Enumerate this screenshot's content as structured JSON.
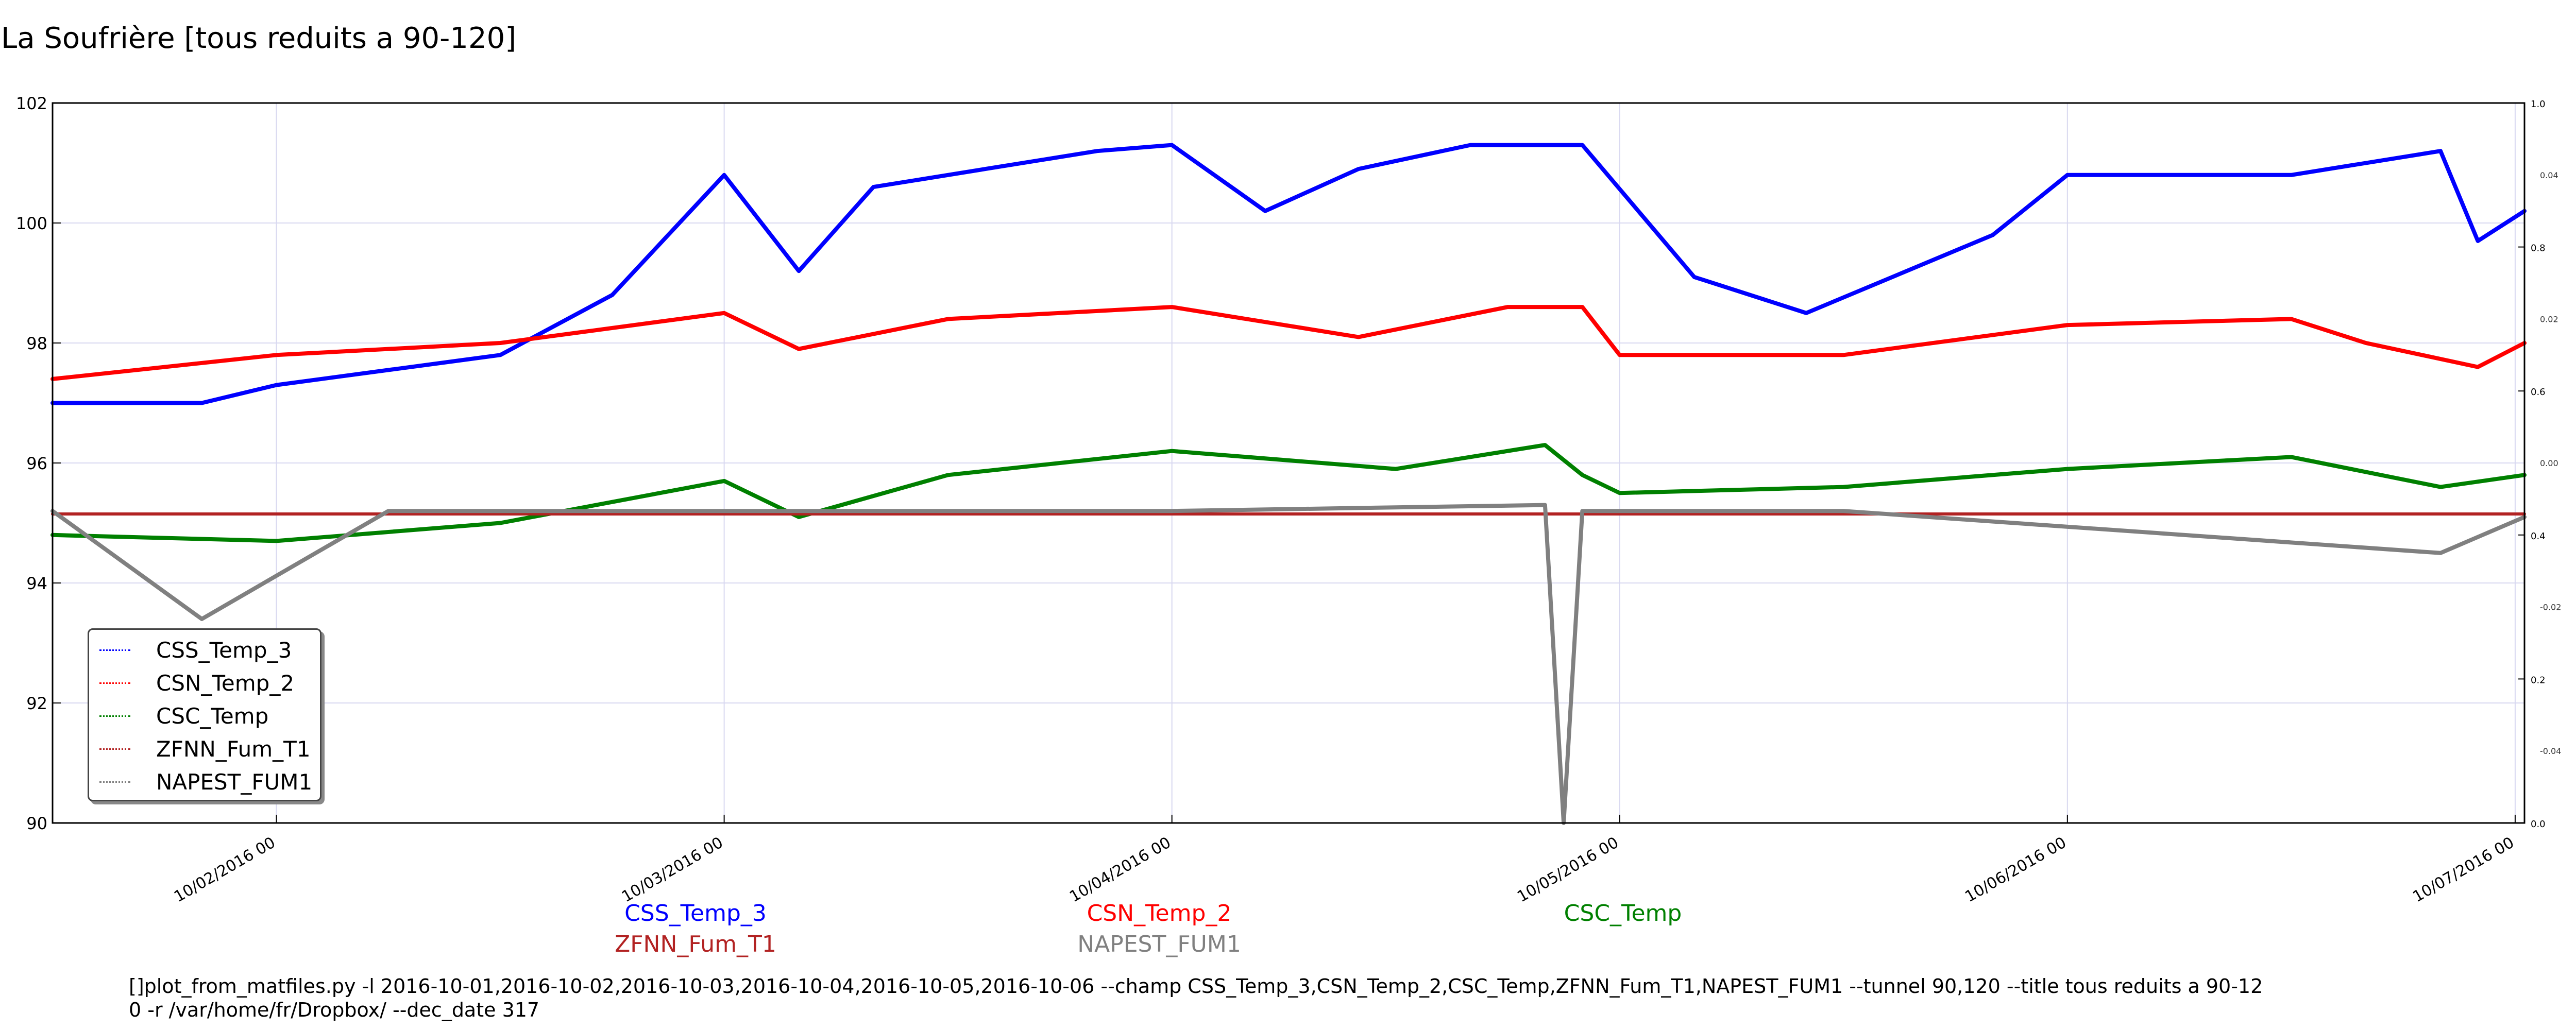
{
  "title": "La Soufrière [tous reduits a 90-120]",
  "chart_data": {
    "type": "line",
    "title": "La Soufrière [tous reduits a 90-120]",
    "xlabel": "",
    "ylabel": "",
    "x_range": [
      "2016-10-01 12:00",
      "2016-10-07 00:30"
    ],
    "ylim": [
      90,
      102
    ],
    "y_ticks": [
      "90",
      "92",
      "94",
      "96",
      "98",
      "100",
      "102"
    ],
    "x_ticks": [
      "10/02/2016 00",
      "10/03/2016 00",
      "10/04/2016 00",
      "10/05/2016 00",
      "10/06/2016 00",
      "10/07/2016 00"
    ],
    "right_ticks_1": [
      "0.0",
      "0.2",
      "0.4",
      "0.6",
      "0.8",
      "1.0"
    ],
    "right_ticks_2": [
      "-0.04",
      "-0.02",
      "0.00",
      "0.02",
      "0.04"
    ],
    "grid": true,
    "legend_position": "lower-left",
    "series": [
      {
        "name": "CSS_Temp_3",
        "color": "#0000ff",
        "x": [
          "2016-10-01 12:00",
          "2016-10-01 20:00",
          "2016-10-02 00:00",
          "2016-10-02 12:00",
          "2016-10-02 18:00",
          "2016-10-03 00:00",
          "2016-10-03 04:00",
          "2016-10-03 08:00",
          "2016-10-03 14:00",
          "2016-10-03 20:00",
          "2016-10-04 00:00",
          "2016-10-04 05:00",
          "2016-10-04 10:00",
          "2016-10-04 16:00",
          "2016-10-04 22:00",
          "2016-10-05 04:00",
          "2016-10-05 10:00",
          "2016-10-05 20:00",
          "2016-10-06 00:00",
          "2016-10-06 12:00",
          "2016-10-06 20:00",
          "2016-10-06 22:00",
          "2016-10-07 00:30"
        ],
        "y": [
          97.0,
          97.0,
          97.3,
          97.8,
          98.8,
          100.8,
          99.2,
          100.6,
          100.9,
          101.2,
          101.3,
          100.2,
          100.9,
          101.3,
          101.3,
          99.1,
          98.5,
          99.8,
          100.8,
          100.8,
          101.2,
          99.7,
          100.2
        ]
      },
      {
        "name": "CSN_Temp_2",
        "color": "#ff0000",
        "x": [
          "2016-10-01 12:00",
          "2016-10-02 00:00",
          "2016-10-02 12:00",
          "2016-10-03 00:00",
          "2016-10-03 04:00",
          "2016-10-03 12:00",
          "2016-10-04 00:00",
          "2016-10-04 10:00",
          "2016-10-04 18:00",
          "2016-10-04 22:00",
          "2016-10-05 00:00",
          "2016-10-05 12:00",
          "2016-10-06 00:00",
          "2016-10-06 12:00",
          "2016-10-06 16:00",
          "2016-10-06 22:00",
          "2016-10-07 00:30"
        ],
        "y": [
          97.4,
          97.8,
          98.0,
          98.5,
          97.9,
          98.4,
          98.6,
          98.1,
          98.6,
          98.6,
          97.8,
          97.8,
          98.3,
          98.4,
          98.0,
          97.6,
          98.0
        ]
      },
      {
        "name": "CSC_Temp",
        "color": "#008000",
        "x": [
          "2016-10-01 12:00",
          "2016-10-02 00:00",
          "2016-10-02 12:00",
          "2016-10-03 00:00",
          "2016-10-03 04:00",
          "2016-10-03 12:00",
          "2016-10-04 00:00",
          "2016-10-04 12:00",
          "2016-10-04 20:00",
          "2016-10-04 22:00",
          "2016-10-05 00:00",
          "2016-10-05 12:00",
          "2016-10-06 00:00",
          "2016-10-06 12:00",
          "2016-10-06 20:00",
          "2016-10-07 00:30"
        ],
        "y": [
          94.8,
          94.7,
          95.0,
          95.7,
          95.1,
          95.8,
          96.2,
          95.9,
          96.3,
          95.8,
          95.5,
          95.6,
          95.9,
          96.1,
          95.6,
          95.8
        ]
      },
      {
        "name": "ZFNN_Fum_T1",
        "color": "#b22222",
        "x": [
          "2016-10-01 12:00",
          "2016-10-07 00:30"
        ],
        "y": [
          95.15,
          95.15
        ]
      },
      {
        "name": "NAPEST_FUM1",
        "color": "#808080",
        "x": [
          "2016-10-01 12:00",
          "2016-10-01 20:00",
          "2016-10-02 06:00",
          "2016-10-03 00:00",
          "2016-10-04 00:00",
          "2016-10-04 20:00",
          "2016-10-04 21:00",
          "2016-10-04 22:00",
          "2016-10-05 12:00",
          "2016-10-06 20:00",
          "2016-10-07 00:30"
        ],
        "y": [
          95.2,
          93.4,
          95.2,
          95.2,
          95.2,
          95.3,
          90.0,
          95.2,
          95.2,
          94.5,
          95.1
        ]
      }
    ]
  },
  "bottom_legend": [
    {
      "label": "CSS_Temp_3",
      "color": "#0000ff"
    },
    {
      "label": "CSN_Temp_2",
      "color": "#ff0000"
    },
    {
      "label": "CSC_Temp",
      "color": "#008000"
    },
    {
      "label": "ZFNN_Fum_T1",
      "color": "#b22222"
    },
    {
      "label": "NAPEST_FUM1",
      "color": "#808080"
    }
  ],
  "command_line": "[]plot_from_matfiles.py -l 2016-10-01,2016-10-02,2016-10-03,2016-10-04,2016-10-05,2016-10-06 --champ CSS_Temp_3,CSN_Temp_2,CSC_Temp,ZFNN_Fum_T1,NAPEST_FUM1 --tunnel 90,120 --title tous reduits a 90-12\n0 -r /var/home/fr/Dropbox/ --dec_date 317"
}
